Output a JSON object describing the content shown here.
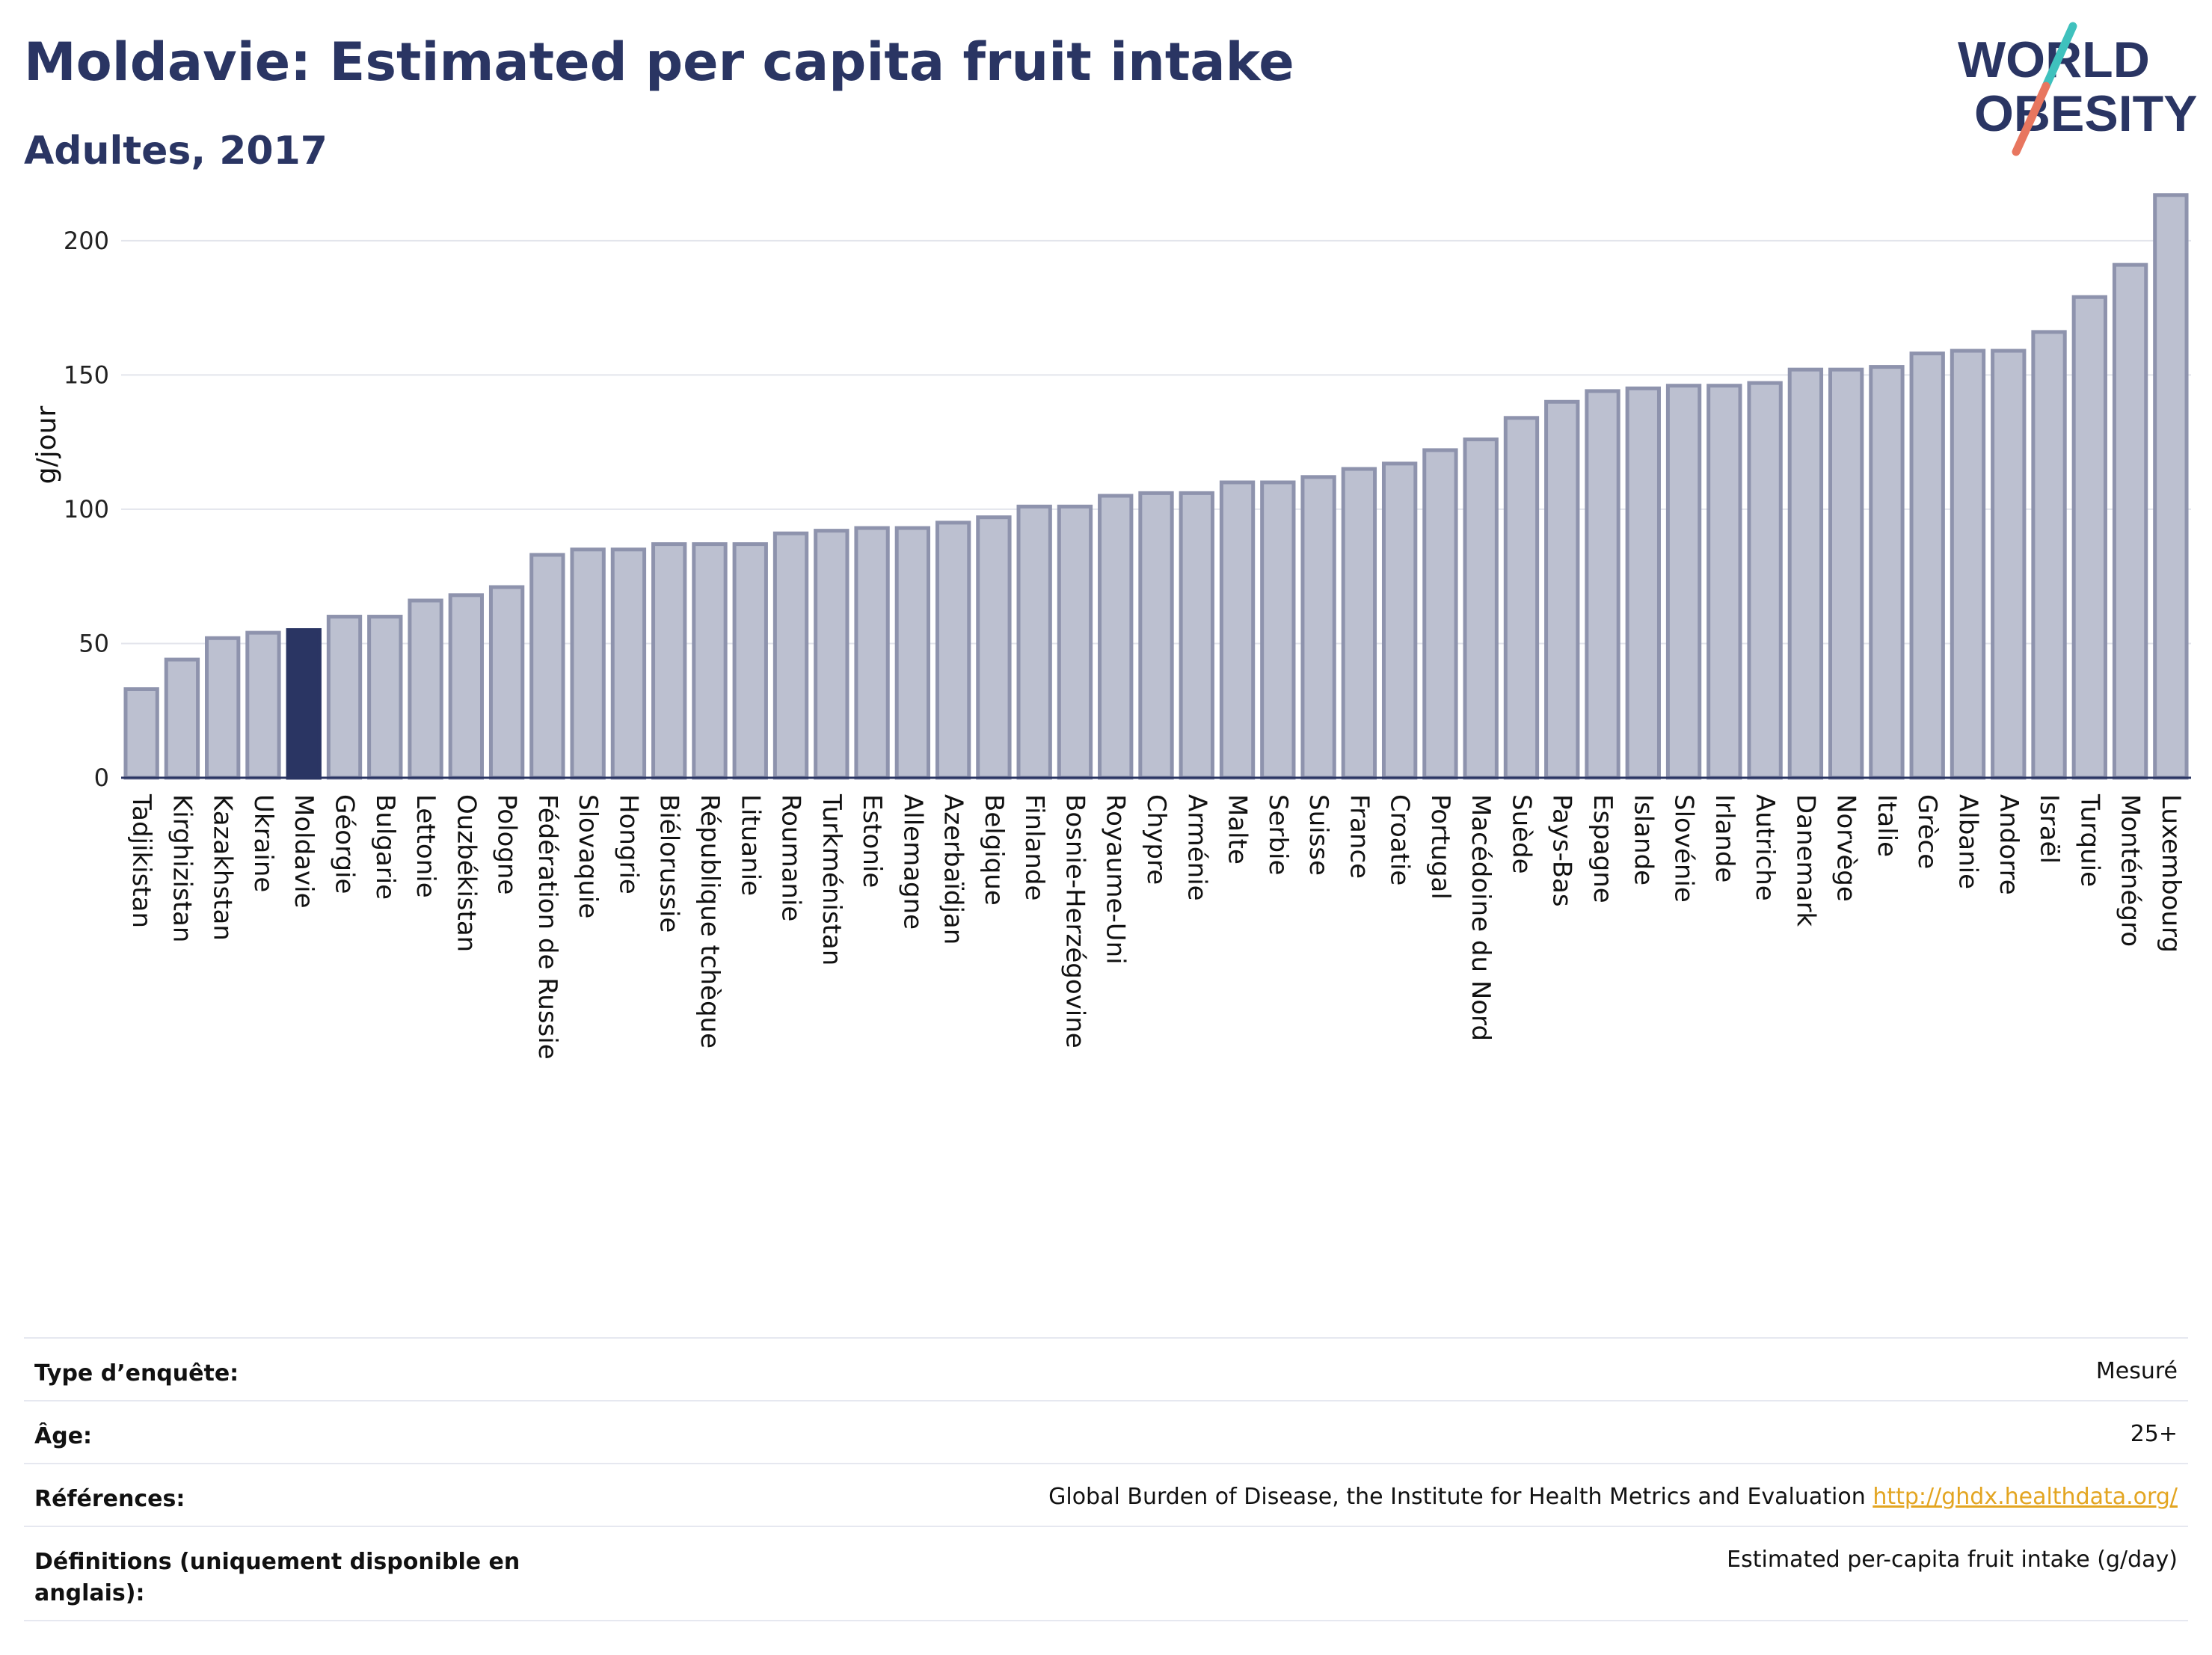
{
  "header": {
    "title": "Moldavie: Estimated per capita fruit intake",
    "subtitle": "Adultes, 2017"
  },
  "logo": {
    "line1": "WORLD",
    "line2": "OBESITY",
    "colors": [
      "#2a3563",
      "#e8765f",
      "#3fc1bd"
    ]
  },
  "colors": {
    "highlight": "#2a3563",
    "bar_fill": "#bcc0d0",
    "bar_stroke": "#8e93ad",
    "grid": "#e3e5ec",
    "axis": "#2a3563"
  },
  "chart_data": {
    "type": "bar",
    "ylabel": "g/jour",
    "ylim": [
      0,
      220
    ],
    "yticks": [
      0,
      50,
      100,
      150,
      200
    ],
    "highlight": "Moldavie",
    "grid": true,
    "categories": [
      "Tadjikistan",
      "Kirghizistan",
      "Kazakhstan",
      "Ukraine",
      "Moldavie",
      "Géorgie",
      "Bulgarie",
      "Lettonie",
      "Ouzbékistan",
      "Pologne",
      "Fédération de Russie",
      "Slovaquie",
      "Hongrie",
      "Biélorussie",
      "République tchèque",
      "Lituanie",
      "Roumanie",
      "Turkménistan",
      "Estonie",
      "Allemagne",
      "Azerbaïdjan",
      "Belgique",
      "Finlande",
      "Bosnie-Herzégovine",
      "Royaume-Uni",
      "Chypre",
      "Arménie",
      "Malte",
      "Serbie",
      "Suisse",
      "France",
      "Croatie",
      "Portugal",
      "Macédoine du Nord",
      "Suède",
      "Pays-Bas",
      "Espagne",
      "Islande",
      "Slovénie",
      "Irlande",
      "Autriche",
      "Danemark",
      "Norvège",
      "Italie",
      "Grèce",
      "Albanie",
      "Andorre",
      "Israël",
      "Turquie",
      "Monténégro",
      "Luxembourg"
    ],
    "values": [
      33,
      44,
      52,
      54,
      55,
      60,
      60,
      66,
      68,
      71,
      83,
      85,
      85,
      87,
      87,
      87,
      91,
      92,
      93,
      93,
      95,
      97,
      101,
      101,
      105,
      106,
      106,
      110,
      110,
      112,
      115,
      117,
      122,
      126,
      134,
      140,
      144,
      145,
      146,
      146,
      147,
      152,
      152,
      153,
      158,
      159,
      159,
      166,
      179,
      191,
      217
    ]
  },
  "info": {
    "rows": [
      {
        "label": "Type d’enquête:",
        "value": "Mesuré"
      },
      {
        "label": "Âge:",
        "value": "25+"
      },
      {
        "label": "Références:",
        "value": "Global Burden of Disease, the Institute for Health Metrics and Evaluation",
        "link": "http://ghdx.healthdata.org/"
      },
      {
        "label": "Définitions (uniquement disponible en anglais):",
        "value": "Estimated per-capita fruit intake (g/day)"
      }
    ]
  }
}
